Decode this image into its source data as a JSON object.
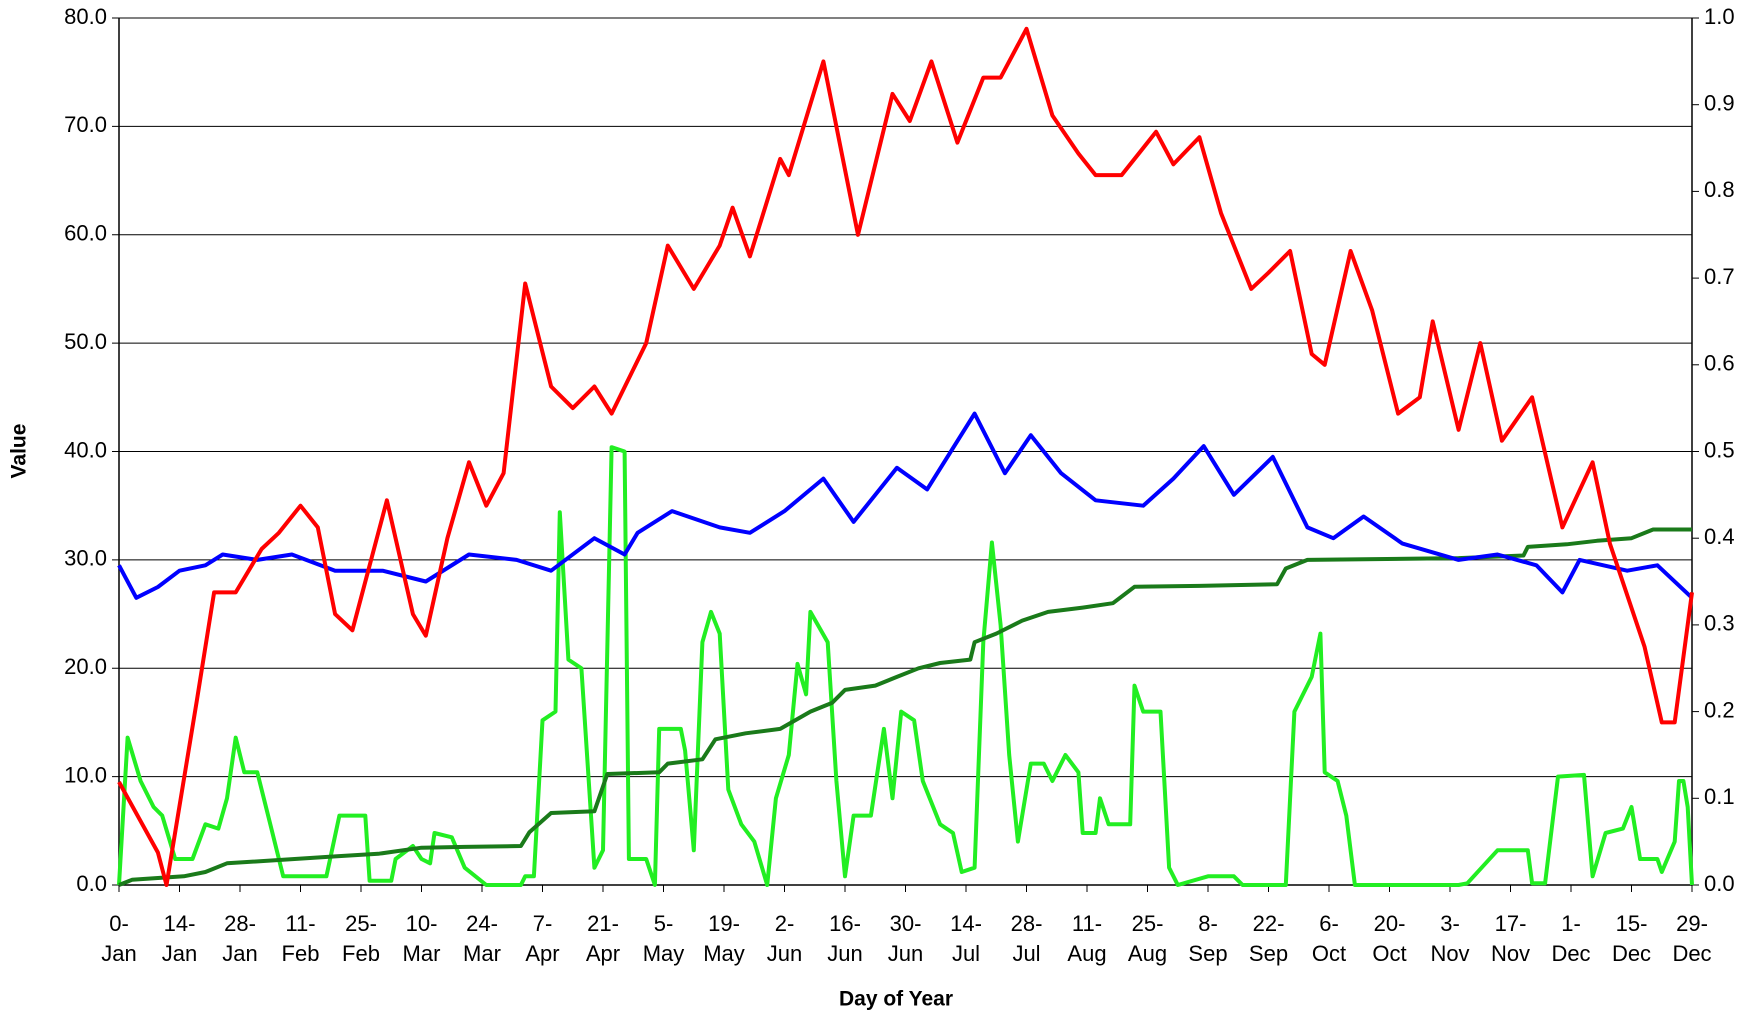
{
  "chart_data": {
    "type": "line",
    "xlabel": "Day of Year",
    "ylabel": "Value",
    "xlim": [
      0,
      364
    ],
    "ylim": [
      0,
      80
    ],
    "y2lim": [
      0,
      1
    ],
    "grid": true,
    "xticks": [
      {
        "value": 0,
        "label": "0-Jan"
      },
      {
        "value": 14,
        "label": "14-Jan"
      },
      {
        "value": 28,
        "label": "28-Jan"
      },
      {
        "value": 42,
        "label": "11-Feb"
      },
      {
        "value": 56,
        "label": "25-Feb"
      },
      {
        "value": 70,
        "label": "10-Mar"
      },
      {
        "value": 84,
        "label": "24-Mar"
      },
      {
        "value": 98,
        "label": "7-Apr"
      },
      {
        "value": 112,
        "label": "21-Apr"
      },
      {
        "value": 126,
        "label": "5-May"
      },
      {
        "value": 140,
        "label": "19-May"
      },
      {
        "value": 154,
        "label": "2-Jun"
      },
      {
        "value": 168,
        "label": "16-Jun"
      },
      {
        "value": 182,
        "label": "30-Jun"
      },
      {
        "value": 196,
        "label": "14-Jul"
      },
      {
        "value": 210,
        "label": "28-Jul"
      },
      {
        "value": 224,
        "label": "11-Aug"
      },
      {
        "value": 238,
        "label": "25-Aug"
      },
      {
        "value": 252,
        "label": "8-Sep"
      },
      {
        "value": 266,
        "label": "22-Sep"
      },
      {
        "value": 280,
        "label": "6-Oct"
      },
      {
        "value": 294,
        "label": "20-Oct"
      },
      {
        "value": 308,
        "label": "3-Nov"
      },
      {
        "value": 322,
        "label": "17-Nov"
      },
      {
        "value": 336,
        "label": "1-Dec"
      },
      {
        "value": 350,
        "label": "15-Dec"
      },
      {
        "value": 364,
        "label": "29-Dec"
      }
    ],
    "yticks": [
      {
        "value": 0,
        "label": "0.0"
      },
      {
        "value": 10,
        "label": "10.0"
      },
      {
        "value": 20,
        "label": "20.0"
      },
      {
        "value": 30,
        "label": "30.0"
      },
      {
        "value": 40,
        "label": "40.0"
      },
      {
        "value": 50,
        "label": "50.0"
      },
      {
        "value": 60,
        "label": "60.0"
      },
      {
        "value": 70,
        "label": "70.0"
      },
      {
        "value": 80,
        "label": "80.0"
      }
    ],
    "y2ticks": [
      {
        "value": 0,
        "label": "0.0"
      },
      0.1,
      0.2,
      0.3,
      0.4,
      0.5,
      0.6,
      0.7,
      0.8,
      0.9,
      {
        "value": 1,
        "label": "1.0"
      }
    ],
    "series": [
      {
        "color": "#ff0000",
        "x": [
          0,
          9,
          11,
          18,
          22,
          27,
          33,
          37,
          42,
          46,
          50,
          54,
          62,
          68,
          71,
          76,
          81,
          85,
          89,
          94,
          100,
          105,
          110,
          114,
          122,
          127,
          133,
          139,
          142,
          146,
          153,
          155,
          163,
          171,
          179,
          183,
          188,
          194,
          200,
          204,
          210,
          216,
          222,
          226,
          232,
          240,
          244,
          250,
          255,
          262,
          266,
          271,
          276,
          279,
          285,
          290,
          296,
          301,
          304,
          310,
          315,
          320,
          327,
          334,
          341,
          345,
          353,
          357,
          360,
          364
        ],
        "values": [
          9.5,
          3,
          0,
          17,
          27,
          27,
          31,
          32.5,
          35,
          33,
          25,
          23.5,
          35.5,
          25,
          23,
          32,
          39,
          35,
          38,
          55.5,
          46,
          44,
          46,
          43.5,
          50,
          59,
          55,
          59,
          62.5,
          58,
          67,
          65.5,
          76,
          60,
          73,
          70.5,
          76,
          68.5,
          74.5,
          74.5,
          79,
          71,
          67.5,
          65.5,
          65.5,
          69.5,
          66.5,
          69,
          62,
          55,
          56.5,
          58.5,
          49,
          48,
          58.5,
          53,
          43.5,
          45,
          52,
          42,
          50,
          41,
          45,
          33,
          39,
          31.5,
          22,
          15,
          15,
          27
        ]
      },
      {
        "color": "#0000ff",
        "x": [
          0,
          4,
          9,
          14,
          20,
          24,
          32,
          40,
          50,
          61,
          71,
          81,
          92,
          100,
          110,
          117,
          120,
          128,
          139,
          146,
          154,
          163,
          170,
          180,
          187,
          198,
          205,
          211,
          218,
          226,
          237,
          244,
          251,
          258,
          267,
          275,
          281,
          288,
          297,
          310,
          319,
          328,
          334,
          338,
          349,
          356,
          364
        ],
        "values": [
          29.5,
          26.5,
          27.5,
          29,
          29.5,
          30.5,
          30,
          30.5,
          29,
          29,
          28,
          30.5,
          30,
          29,
          32,
          30.5,
          32.5,
          34.5,
          33,
          32.5,
          34.5,
          37.5,
          33.5,
          38.5,
          36.5,
          43.5,
          38,
          41.5,
          38,
          35.5,
          35,
          37.5,
          40.5,
          36,
          39.5,
          33,
          32,
          34,
          31.5,
          30,
          30.5,
          29.5,
          27,
          30,
          29,
          29.5,
          26.5
        ]
      },
      {
        "color": "#1a7a1a",
        "axis": "y2",
        "x": [
          0,
          3,
          15,
          20,
          25,
          50,
          60,
          70,
          80,
          93,
          95,
          100,
          110,
          113,
          125,
          127,
          135,
          138,
          145,
          153,
          160,
          165,
          168,
          175,
          180,
          185,
          190,
          197,
          198,
          203,
          209,
          215,
          223,
          230,
          235,
          250,
          268,
          270,
          275,
          310,
          325,
          326,
          335,
          342,
          350,
          355,
          364
        ],
        "values": [
          0,
          0.006,
          0.01,
          0.015,
          0.025,
          0.033,
          0.036,
          0.043,
          0.044,
          0.045,
          0.061,
          0.083,
          0.085,
          0.128,
          0.13,
          0.14,
          0.145,
          0.168,
          0.175,
          0.18,
          0.2,
          0.21,
          0.225,
          0.23,
          0.24,
          0.25,
          0.256,
          0.26,
          0.28,
          0.29,
          0.305,
          0.315,
          0.32,
          0.325,
          0.344,
          0.345,
          0.347,
          0.365,
          0.375,
          0.377,
          0.38,
          0.39,
          0.393,
          0.397,
          0.4,
          0.41,
          0.41
        ]
      },
      {
        "color": "#22ee22",
        "axis": "y2",
        "x": [
          0,
          2,
          5,
          8,
          10,
          13,
          17,
          20,
          23,
          25,
          27,
          29,
          32,
          35,
          38,
          42,
          45,
          48,
          51,
          57,
          58,
          63,
          64,
          68,
          70,
          72,
          73,
          77,
          80,
          85,
          93,
          94,
          96,
          98,
          101,
          102,
          104,
          107,
          110,
          112,
          114,
          117,
          118,
          122,
          124,
          125,
          130,
          131,
          133,
          135,
          137,
          139,
          141,
          144,
          147,
          150,
          152,
          155,
          157,
          159,
          160,
          164,
          166,
          168,
          170,
          174,
          177,
          179,
          181,
          184,
          186,
          190,
          193,
          195,
          198,
          200,
          202,
          204,
          206,
          208,
          211,
          214,
          216,
          219,
          222,
          223,
          226,
          227,
          229,
          234,
          235,
          237,
          241,
          243,
          245,
          252,
          258,
          260,
          270,
          272,
          276,
          278,
          279,
          282,
          284,
          286,
          310,
          312,
          319,
          326,
          327,
          330,
          333,
          339,
          341,
          344,
          348,
          350,
          352,
          356,
          357,
          360,
          361,
          362,
          363,
          364
        ],
        "values": [
          0,
          0.17,
          0.12,
          0.09,
          0.08,
          0.03,
          0.03,
          0.07,
          0.065,
          0.1,
          0.17,
          0.13,
          0.13,
          0.07,
          0.01,
          0.01,
          0.01,
          0.01,
          0.08,
          0.08,
          0.005,
          0.005,
          0.03,
          0.045,
          0.03,
          0.025,
          0.06,
          0.055,
          0.02,
          0,
          0,
          0.01,
          0.01,
          0.19,
          0.2,
          0.43,
          0.26,
          0.25,
          0.02,
          0.04,
          0.505,
          0.5,
          0.03,
          0.03,
          0,
          0.18,
          0.18,
          0.155,
          0.04,
          0.28,
          0.315,
          0.29,
          0.11,
          0.07,
          0.05,
          0,
          0.1,
          0.15,
          0.255,
          0.22,
          0.315,
          0.28,
          0.12,
          0.01,
          0.08,
          0.08,
          0.18,
          0.1,
          0.2,
          0.19,
          0.12,
          0.07,
          0.06,
          0.015,
          0.02,
          0.28,
          0.395,
          0.3,
          0.15,
          0.05,
          0.14,
          0.14,
          0.12,
          0.15,
          0.13,
          0.06,
          0.06,
          0.1,
          0.07,
          0.07,
          0.23,
          0.2,
          0.2,
          0.02,
          0,
          0.01,
          0.01,
          0,
          0,
          0.2,
          0.24,
          0.29,
          0.13,
          0.12,
          0.08,
          0,
          0,
          0.002,
          0.04,
          0.04,
          0.002,
          0.002,
          0.125,
          0.127,
          0.01,
          0.06,
          0.065,
          0.09,
          0.03,
          0.03,
          0.015,
          0.05,
          0.12,
          0.12,
          0.09,
          0
        ]
      }
    ]
  }
}
